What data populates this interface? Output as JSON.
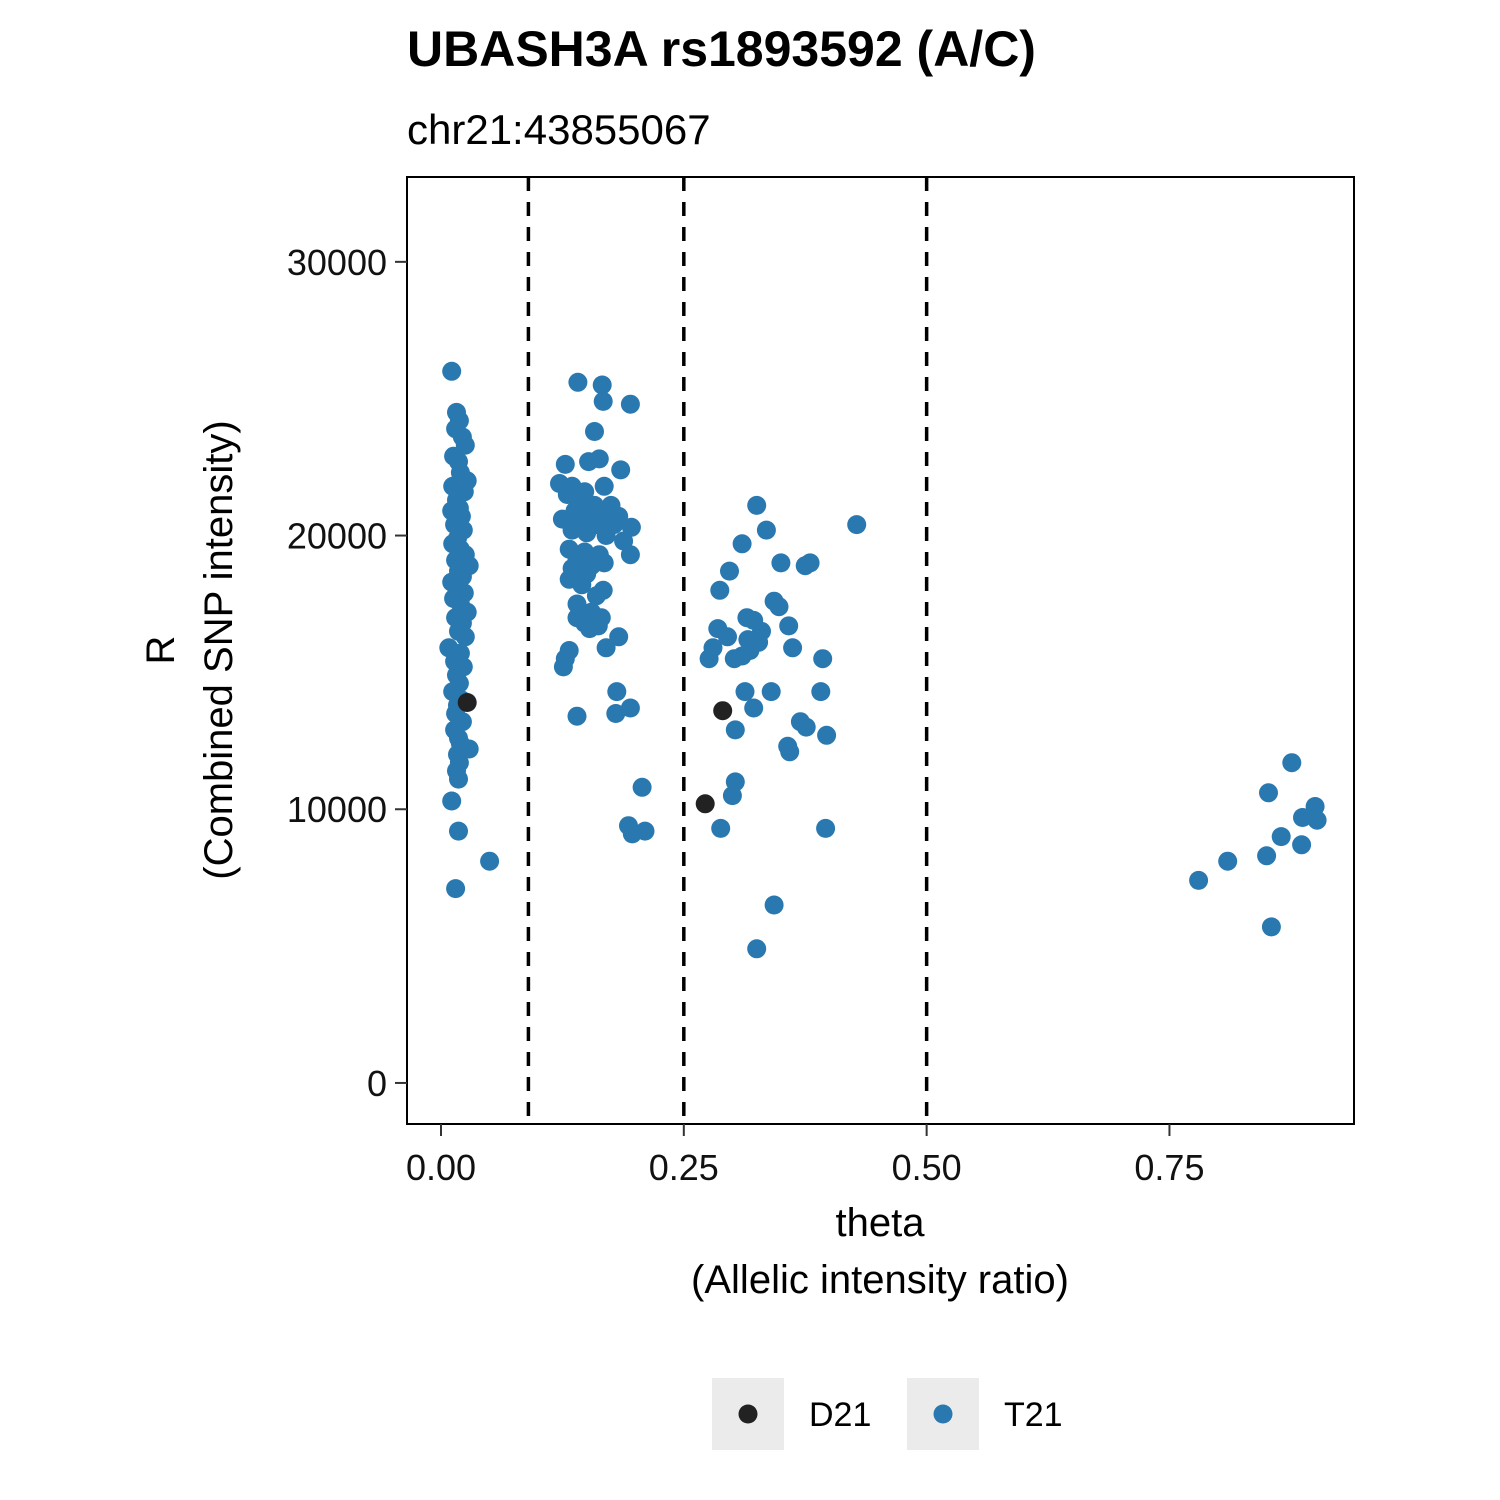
{
  "chart_data": {
    "type": "scatter",
    "title": "UBASH3A rs1893592 (A/C)",
    "subtitle": "chr21:43855067",
    "xlabel": [
      "theta",
      "(Allelic intensity ratio)"
    ],
    "ylabel": [
      "R",
      "(Combined SNP intensity)"
    ],
    "xlim": [
      -0.035,
      0.94
    ],
    "ylim": [
      -1500,
      33100
    ],
    "x_ticks": [
      0.0,
      0.25,
      0.5,
      0.75
    ],
    "x_tick_labels": [
      "0.00",
      "0.25",
      "0.50",
      "0.75"
    ],
    "y_ticks": [
      0,
      10000,
      20000,
      30000
    ],
    "y_tick_labels": [
      "0",
      "10000",
      "20000",
      "30000"
    ],
    "vlines": [
      0.09,
      0.25,
      0.5
    ],
    "grid": false,
    "legend_position": "bottom",
    "series": [
      {
        "name": "D21",
        "color": "#222222",
        "points": [
          [
            0.027,
            13900
          ],
          [
            0.29,
            13600
          ],
          [
            0.272,
            10200
          ]
        ]
      },
      {
        "name": "T21",
        "color": "#2a78b0",
        "points": [
          [
            0.011,
            26000
          ],
          [
            0.016,
            24500
          ],
          [
            0.019,
            24200
          ],
          [
            0.015,
            23900
          ],
          [
            0.022,
            23600
          ],
          [
            0.025,
            23300
          ],
          [
            0.013,
            22900
          ],
          [
            0.018,
            22700
          ],
          [
            0.02,
            22300
          ],
          [
            0.027,
            22000
          ],
          [
            0.012,
            21800
          ],
          [
            0.024,
            21600
          ],
          [
            0.016,
            21300
          ],
          [
            0.019,
            21000
          ],
          [
            0.011,
            20900
          ],
          [
            0.021,
            20700
          ],
          [
            0.014,
            20400
          ],
          [
            0.023,
            20200
          ],
          [
            0.017,
            19900
          ],
          [
            0.012,
            19700
          ],
          [
            0.02,
            19500
          ],
          [
            0.025,
            19300
          ],
          [
            0.015,
            19100
          ],
          [
            0.029,
            18900
          ],
          [
            0.018,
            18700
          ],
          [
            0.022,
            18500
          ],
          [
            0.011,
            18300
          ],
          [
            0.016,
            18100
          ],
          [
            0.024,
            17900
          ],
          [
            0.013,
            17700
          ],
          [
            0.02,
            17500
          ],
          [
            0.027,
            17200
          ],
          [
            0.015,
            17000
          ],
          [
            0.022,
            16800
          ],
          [
            0.018,
            16500
          ],
          [
            0.025,
            16300
          ],
          [
            0.008,
            15900
          ],
          [
            0.02,
            15700
          ],
          [
            0.014,
            15400
          ],
          [
            0.023,
            15200
          ],
          [
            0.016,
            14900
          ],
          [
            0.019,
            14600
          ],
          [
            0.012,
            14300
          ],
          [
            0.021,
            14000
          ],
          [
            0.017,
            13800
          ],
          [
            0.015,
            13500
          ],
          [
            0.022,
            13200
          ],
          [
            0.014,
            12900
          ],
          [
            0.018,
            12600
          ],
          [
            0.02,
            12400
          ],
          [
            0.029,
            12200
          ],
          [
            0.017,
            12000
          ],
          [
            0.019,
            11700
          ],
          [
            0.016,
            11400
          ],
          [
            0.018,
            11100
          ],
          [
            0.011,
            10300
          ],
          [
            0.018,
            9200
          ],
          [
            0.05,
            8100
          ],
          [
            0.015,
            7100
          ],
          [
            0.141,
            25600
          ],
          [
            0.166,
            25500
          ],
          [
            0.167,
            24900
          ],
          [
            0.195,
            24800
          ],
          [
            0.158,
            23800
          ],
          [
            0.163,
            22800
          ],
          [
            0.128,
            22600
          ],
          [
            0.152,
            22700
          ],
          [
            0.185,
            22400
          ],
          [
            0.122,
            21900
          ],
          [
            0.135,
            21800
          ],
          [
            0.148,
            21600
          ],
          [
            0.168,
            21800
          ],
          [
            0.13,
            21500
          ],
          [
            0.145,
            21300
          ],
          [
            0.158,
            21100
          ],
          [
            0.175,
            21100
          ],
          [
            0.138,
            20900
          ],
          [
            0.152,
            20800
          ],
          [
            0.165,
            20700
          ],
          [
            0.183,
            20700
          ],
          [
            0.125,
            20600
          ],
          [
            0.142,
            20500
          ],
          [
            0.16,
            20400
          ],
          [
            0.178,
            20400
          ],
          [
            0.196,
            20300
          ],
          [
            0.135,
            20200
          ],
          [
            0.15,
            20100
          ],
          [
            0.17,
            20000
          ],
          [
            0.188,
            19800
          ],
          [
            0.132,
            19500
          ],
          [
            0.148,
            19400
          ],
          [
            0.163,
            19300
          ],
          [
            0.195,
            19300
          ],
          [
            0.14,
            19100
          ],
          [
            0.155,
            18900
          ],
          [
            0.168,
            19000
          ],
          [
            0.135,
            18800
          ],
          [
            0.15,
            18600
          ],
          [
            0.132,
            18400
          ],
          [
            0.145,
            18200
          ],
          [
            0.167,
            18000
          ],
          [
            0.16,
            17800
          ],
          [
            0.14,
            17500
          ],
          [
            0.155,
            17200
          ],
          [
            0.14,
            17000
          ],
          [
            0.165,
            17000
          ],
          [
            0.148,
            16800
          ],
          [
            0.162,
            16700
          ],
          [
            0.153,
            16600
          ],
          [
            0.183,
            16300
          ],
          [
            0.132,
            15800
          ],
          [
            0.17,
            15900
          ],
          [
            0.128,
            15500
          ],
          [
            0.126,
            15200
          ],
          [
            0.181,
            14300
          ],
          [
            0.195,
            13700
          ],
          [
            0.14,
            13400
          ],
          [
            0.18,
            13500
          ],
          [
            0.207,
            10800
          ],
          [
            0.193,
            9400
          ],
          [
            0.197,
            9100
          ],
          [
            0.21,
            9200
          ],
          [
            0.325,
            21100
          ],
          [
            0.428,
            20400
          ],
          [
            0.335,
            20200
          ],
          [
            0.31,
            19700
          ],
          [
            0.35,
            19000
          ],
          [
            0.375,
            18900
          ],
          [
            0.38,
            19000
          ],
          [
            0.297,
            18700
          ],
          [
            0.287,
            18000
          ],
          [
            0.343,
            17600
          ],
          [
            0.348,
            17400
          ],
          [
            0.315,
            17000
          ],
          [
            0.322,
            16900
          ],
          [
            0.358,
            16700
          ],
          [
            0.285,
            16600
          ],
          [
            0.33,
            16500
          ],
          [
            0.295,
            16300
          ],
          [
            0.316,
            16200
          ],
          [
            0.327,
            16100
          ],
          [
            0.28,
            15900
          ],
          [
            0.362,
            15900
          ],
          [
            0.318,
            15800
          ],
          [
            0.31,
            15600
          ],
          [
            0.276,
            15500
          ],
          [
            0.302,
            15500
          ],
          [
            0.393,
            15500
          ],
          [
            0.313,
            14300
          ],
          [
            0.34,
            14300
          ],
          [
            0.391,
            14300
          ],
          [
            0.322,
            13700
          ],
          [
            0.37,
            13200
          ],
          [
            0.376,
            13000
          ],
          [
            0.303,
            12900
          ],
          [
            0.397,
            12700
          ],
          [
            0.357,
            12300
          ],
          [
            0.359,
            12100
          ],
          [
            0.303,
            11000
          ],
          [
            0.3,
            10500
          ],
          [
            0.288,
            9300
          ],
          [
            0.396,
            9300
          ],
          [
            0.343,
            6500
          ],
          [
            0.325,
            4900
          ],
          [
            0.876,
            11700
          ],
          [
            0.852,
            10600
          ],
          [
            0.9,
            10100
          ],
          [
            0.898,
            9800
          ],
          [
            0.887,
            9700
          ],
          [
            0.902,
            9600
          ],
          [
            0.865,
            9000
          ],
          [
            0.886,
            8700
          ],
          [
            0.85,
            8300
          ],
          [
            0.81,
            8100
          ],
          [
            0.78,
            7400
          ],
          [
            0.855,
            5700
          ]
        ]
      }
    ]
  }
}
